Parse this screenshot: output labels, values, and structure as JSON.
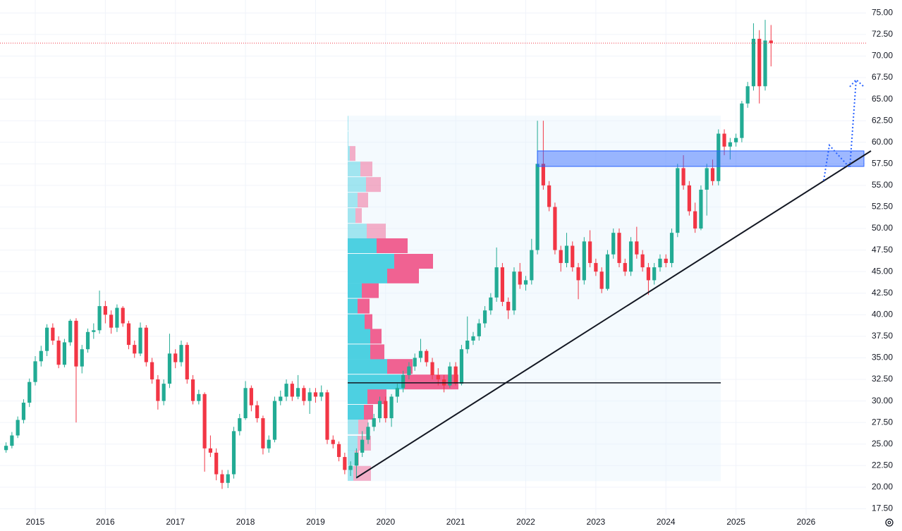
{
  "chart_data": {
    "type": "candlestick",
    "categories": [
      null,
      null,
      null,
      null,
      null,
      "2015",
      null,
      null,
      null,
      null,
      null,
      null,
      null,
      null,
      null,
      null,
      null,
      "2016",
      null,
      null,
      null,
      null,
      null,
      null,
      null,
      null,
      null,
      null,
      null,
      "2017",
      null,
      null,
      null,
      null,
      null,
      null,
      null,
      null,
      null,
      null,
      null,
      "2018",
      null,
      null,
      null,
      null,
      null,
      null,
      null,
      null,
      null,
      null,
      null,
      "2019",
      null,
      null,
      null,
      null,
      null,
      null,
      null,
      null,
      null,
      null,
      null,
      "2020",
      null,
      null,
      null,
      null,
      null,
      null,
      null,
      null,
      null,
      null,
      null,
      "2021",
      null,
      null,
      null,
      null,
      null,
      null,
      null,
      null,
      null,
      null,
      null,
      "2022",
      null,
      null,
      null,
      null,
      null,
      null,
      null,
      null,
      null,
      null,
      null,
      "2023",
      null,
      null,
      null,
      null,
      null,
      null,
      null,
      null,
      null,
      null,
      null,
      "2024",
      null,
      null,
      null,
      null,
      null,
      null,
      null,
      null,
      null,
      null,
      null,
      "2025",
      null,
      null,
      null,
      null,
      null,
      null,
      null,
      null,
      null,
      null,
      null,
      "2026",
      null,
      null,
      null,
      null,
      null,
      null,
      null,
      null,
      null,
      null,
      null
    ],
    "open": [
      24.3,
      24.8,
      26.0,
      27.8,
      29.8,
      32.2,
      34.6,
      35.8,
      38.5,
      37.0,
      34.2,
      36.8,
      39.3,
      34.0,
      36.0,
      38.0,
      38.2,
      41.0,
      40.0,
      38.5,
      40.8,
      39.0,
      36.5,
      35.5,
      38.5,
      34.5,
      32.5,
      30.0,
      32.0,
      35.5,
      34.5,
      36.5,
      32.5,
      30.0,
      30.8,
      24.5,
      24.0,
      21.5,
      20.5,
      21.5,
      26.5,
      28.0,
      31.5,
      29.5,
      28.0,
      24.5,
      25.5,
      30.0,
      30.5,
      32.0,
      30.5,
      31.5,
      30.0,
      31.0,
      30.5,
      31.0,
      25.5,
      25.0,
      23.5,
      22.0,
      22.5,
      24.0,
      25.5,
      27.0,
      28.0,
      30.0,
      28.0,
      30.5,
      31.5,
      33.0,
      34.0,
      35.0,
      35.8,
      34.5,
      33.0,
      32.5,
      31.8,
      34.0,
      32.0,
      36.0,
      37.0,
      37.5,
      39.0,
      40.5,
      42.0,
      45.5,
      41.5,
      40.5,
      45.0,
      43.5,
      44.0,
      47.5,
      57.5,
      55.0,
      52.5,
      47.5,
      46.0,
      48.0,
      45.5,
      44.0,
      48.5,
      46.0,
      45.0,
      43.0,
      47.0,
      49.5,
      46.0,
      45.0,
      48.5,
      47.0,
      45.5,
      44.0,
      45.5,
      46.5,
      46.0,
      49.5,
      57.0,
      55.0,
      52.0,
      50.0,
      54.5,
      57.0,
      55.5,
      61.0,
      59.5,
      60.0,
      60.5,
      64.5,
      66.5,
      72.0,
      66.5,
      71.8,
      null,
      null,
      null,
      null,
      null,
      null,
      null,
      null,
      null,
      null,
      null,
      null,
      null,
      null,
      null,
      null,
      null
    ],
    "high": [
      25.2,
      26.4,
      28.2,
      30.2,
      32.6,
      35.2,
      36.4,
      38.9,
      39.0,
      37.5,
      37.2,
      39.5,
      39.6,
      36.5,
      38.4,
      39.0,
      42.8,
      41.6,
      40.5,
      41.2,
      41.0,
      39.3,
      37.0,
      39.1,
      38.8,
      35.0,
      33.0,
      32.5,
      37.8,
      36.0,
      37.0,
      36.8,
      33.0,
      31.3,
      31.0,
      26.0,
      24.5,
      22.0,
      22.0,
      27.0,
      28.5,
      32.3,
      31.8,
      30.0,
      28.3,
      26.0,
      30.5,
      31.2,
      32.5,
      32.3,
      33.0,
      31.8,
      31.5,
      31.5,
      31.8,
      31.3,
      26.0,
      25.3,
      24.0,
      23.0,
      24.5,
      26.5,
      27.5,
      28.5,
      30.5,
      30.5,
      30.8,
      32.0,
      33.5,
      34.5,
      35.5,
      37.2,
      36.0,
      35.0,
      33.8,
      33.0,
      34.5,
      34.5,
      36.5,
      39.8,
      38.0,
      39.5,
      41.0,
      42.5,
      47.8,
      46.0,
      42.0,
      45.5,
      46.0,
      44.5,
      48.8,
      62.5,
      62.5,
      55.5,
      53.0,
      48.0,
      49.5,
      48.5,
      46.0,
      49.0,
      49.8,
      46.5,
      45.5,
      47.5,
      50.0,
      50.0,
      46.5,
      49.0,
      50.2,
      47.5,
      46.0,
      46.0,
      47.0,
      47.0,
      50.0,
      57.5,
      58.5,
      55.5,
      53.0,
      55.0,
      57.5,
      58.0,
      61.5,
      61.5,
      60.5,
      61.0,
      64.8,
      67.0,
      73.8,
      73.0,
      74.2,
      73.6,
      null,
      null,
      null,
      null,
      null,
      null,
      null,
      null,
      null,
      null,
      null,
      null,
      null,
      null,
      null,
      null,
      null
    ],
    "low": [
      24.0,
      24.5,
      25.7,
      27.4,
      29.3,
      31.8,
      34.0,
      35.2,
      36.5,
      33.8,
      33.9,
      36.4,
      27.5,
      33.2,
      35.6,
      37.2,
      37.8,
      39.0,
      37.8,
      38.0,
      38.6,
      36.0,
      35.0,
      35.2,
      34.0,
      32.0,
      29.0,
      29.5,
      31.5,
      33.8,
      34.0,
      32.0,
      29.6,
      29.6,
      21.8,
      23.5,
      20.8,
      19.8,
      19.9,
      21.0,
      26.0,
      27.8,
      28.8,
      27.5,
      23.8,
      24.0,
      25.2,
      29.5,
      30.0,
      30.0,
      30.2,
      29.5,
      28.5,
      29.8,
      30.0,
      25.0,
      24.5,
      23.0,
      21.5,
      21.3,
      21.0,
      23.5,
      25.0,
      26.5,
      27.5,
      27.5,
      27.0,
      29.8,
      31.0,
      32.5,
      33.5,
      34.5,
      34.0,
      32.5,
      31.8,
      31.0,
      31.5,
      31.8,
      31.8,
      35.5,
      36.5,
      37.0,
      38.5,
      40.0,
      41.5,
      41.0,
      39.5,
      40.0,
      43.0,
      42.8,
      43.5,
      47.0,
      54.5,
      52.0,
      47.0,
      45.0,
      45.5,
      45.0,
      41.8,
      43.5,
      45.5,
      44.5,
      42.5,
      42.8,
      46.5,
      45.5,
      44.5,
      44.5,
      46.5,
      45.0,
      42.3,
      43.5,
      45.0,
      45.5,
      45.5,
      49.0,
      54.5,
      51.5,
      49.5,
      49.8,
      51.5,
      55.0,
      55.0,
      58.5,
      58.0,
      59.5,
      60.0,
      64.0,
      66.0,
      64.5,
      66.0,
      68.8,
      null,
      null,
      null,
      null,
      null,
      null,
      null,
      null,
      null,
      null,
      null,
      null,
      null,
      null,
      null,
      null,
      null
    ],
    "close": [
      24.8,
      26.0,
      27.8,
      29.8,
      32.2,
      34.6,
      35.8,
      38.5,
      37.0,
      34.2,
      36.8,
      39.3,
      34.0,
      36.0,
      38.0,
      38.2,
      41.0,
      40.0,
      38.5,
      40.8,
      39.0,
      36.5,
      35.5,
      38.5,
      34.5,
      32.5,
      30.0,
      32.0,
      35.5,
      34.5,
      36.5,
      32.5,
      30.0,
      30.8,
      24.5,
      24.0,
      21.5,
      20.5,
      21.5,
      26.5,
      28.0,
      31.5,
      29.5,
      28.0,
      24.5,
      25.5,
      30.0,
      30.5,
      32.0,
      30.5,
      31.5,
      30.0,
      31.0,
      30.5,
      31.0,
      25.5,
      25.0,
      23.5,
      22.0,
      22.5,
      24.0,
      25.5,
      27.0,
      28.0,
      30.0,
      28.0,
      30.5,
      31.5,
      33.0,
      34.0,
      35.0,
      35.8,
      34.5,
      33.0,
      32.5,
      31.8,
      34.0,
      32.0,
      36.0,
      37.0,
      37.5,
      39.0,
      40.5,
      42.0,
      45.5,
      41.5,
      40.5,
      45.0,
      43.5,
      44.0,
      47.5,
      57.5,
      55.0,
      52.5,
      47.5,
      46.0,
      48.0,
      45.5,
      44.0,
      48.5,
      46.0,
      45.0,
      43.0,
      47.0,
      49.5,
      46.0,
      45.0,
      48.5,
      47.0,
      45.5,
      44.0,
      45.5,
      46.5,
      46.0,
      49.5,
      57.0,
      55.0,
      52.0,
      50.0,
      54.5,
      57.0,
      55.5,
      61.0,
      59.5,
      60.0,
      60.5,
      64.5,
      66.5,
      72.0,
      66.5,
      71.8,
      71.5,
      null,
      null,
      null,
      null,
      null,
      null,
      null,
      null,
      null,
      null,
      null,
      null,
      null,
      null,
      null,
      null,
      null
    ],
    "up_color": "#22ab94",
    "down_color": "#f23645",
    "ylim": [
      16.8,
      76.5
    ],
    "yticks": [
      {
        "value": 17.5,
        "label": "17.50"
      },
      {
        "value": 20,
        "label": "20.00"
      },
      {
        "value": 22.5,
        "label": "22.50"
      },
      {
        "value": 25,
        "label": "25.00"
      },
      {
        "value": 27.5,
        "label": "27.50"
      },
      {
        "value": 30,
        "label": "30.00"
      },
      {
        "value": 32.5,
        "label": "32.50"
      },
      {
        "value": 35,
        "label": "35.00"
      },
      {
        "value": 37.5,
        "label": "37.50"
      },
      {
        "value": 40,
        "label": "40.00"
      },
      {
        "value": 42.5,
        "label": "42.50"
      },
      {
        "value": 45,
        "label": "45.00"
      },
      {
        "value": 47.5,
        "label": "47.50"
      },
      {
        "value": 50,
        "label": "50.00"
      },
      {
        "value": 52.5,
        "label": "52.50"
      },
      {
        "value": 55,
        "label": "55.00"
      },
      {
        "value": 57.5,
        "label": "57.50"
      },
      {
        "value": 60,
        "label": "60.00"
      },
      {
        "value": 62.5,
        "label": "62.50"
      },
      {
        "value": 65,
        "label": "65.00"
      },
      {
        "value": 67.5,
        "label": "67.50"
      },
      {
        "value": 70,
        "label": "70.00"
      },
      {
        "value": 72.5,
        "label": "72.50"
      },
      {
        "value": 75,
        "label": "75.00"
      }
    ],
    "grid": true,
    "volume_profile": {
      "levels": [
        21.6,
        23.4,
        25.1,
        27.0,
        28.7,
        30.5,
        32.2,
        34.0,
        35.7,
        37.5,
        39.2,
        41.0,
        42.8,
        44.5,
        46.2,
        48.0,
        49.7,
        51.5,
        53.3,
        55.1,
        56.9,
        58.7,
        60.4,
        62.2
      ],
      "up": [
        8,
        10,
        14,
        15,
        23,
        28,
        80,
        56,
        32,
        32,
        24,
        14,
        20,
        56,
        66,
        41,
        27,
        11,
        14,
        26,
        18,
        3,
        1,
        1
      ],
      "down": [
        25,
        6,
        19,
        14,
        13,
        27,
        77,
        36,
        20,
        16,
        11,
        17,
        24,
        45,
        55,
        44,
        27,
        9,
        15,
        21,
        17,
        8,
        0,
        0
      ],
      "value_area": [
        28.0,
        48.8
      ],
      "up_color": "#4dd0e1",
      "down_color": "#f06292"
    },
    "drawings": {
      "trendline": [
        21.1,
        59.0
      ],
      "zone": [
        57.2,
        59.0
      ],
      "level_line": 32.1
    }
  }
}
